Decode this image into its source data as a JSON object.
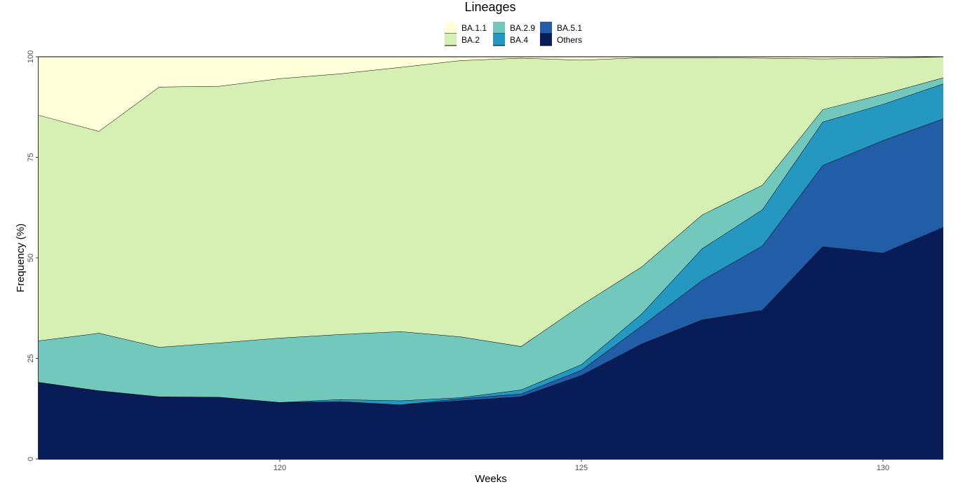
{
  "chart_data": {
    "type": "area",
    "stacked": true,
    "legend_title": "Lineages",
    "legend_position": "top",
    "xlabel": "Weeks",
    "ylabel": "Frequency (%)",
    "xlim": [
      116,
      131
    ],
    "ylim": [
      0,
      100
    ],
    "x_ticks": [
      120,
      125,
      130
    ],
    "y_ticks": [
      0,
      25,
      50,
      75,
      100
    ],
    "grid": false,
    "x": [
      116,
      117,
      118,
      119,
      120,
      121,
      122,
      123,
      124,
      125,
      126,
      127,
      128,
      129,
      130,
      131
    ],
    "series": [
      {
        "name": "Others",
        "color": "#081d58",
        "values": [
          19.1,
          17.0,
          15.5,
          15.4,
          14.1,
          14.3,
          13.5,
          14.5,
          15.5,
          20.8,
          28.6,
          34.6,
          37.0,
          52.8,
          51.2,
          57.6
        ]
      },
      {
        "name": "BA.5.1",
        "color": "#225ea8",
        "values": [
          0.0,
          0.0,
          0.0,
          0.0,
          0.0,
          0.0,
          0.0,
          0.5,
          0.7,
          1.3,
          4.5,
          9.8,
          16.0,
          20.2,
          28.0,
          27.0
        ]
      },
      {
        "name": "BA.4",
        "color": "#2498c1",
        "values": [
          0.0,
          0.0,
          0.0,
          0.0,
          0.0,
          0.5,
          1.0,
          0.3,
          1.0,
          1.4,
          3.0,
          7.9,
          9.0,
          10.8,
          9.0,
          8.7
        ]
      },
      {
        "name": "BA.2.9",
        "color": "#73c8bd",
        "values": [
          10.3,
          14.3,
          12.3,
          13.5,
          16.0,
          16.2,
          17.2,
          15.1,
          10.8,
          14.8,
          11.7,
          8.4,
          6.1,
          3.1,
          2.5,
          1.5
        ]
      },
      {
        "name": "BA.2",
        "color": "#d6efb3",
        "values": [
          56.1,
          50.2,
          64.7,
          63.8,
          64.5,
          64.8,
          65.7,
          68.7,
          71.7,
          60.9,
          52.0,
          39.1,
          31.6,
          12.6,
          9.0,
          5.2
        ]
      },
      {
        "name": "BA.1.1",
        "color": "#ffffd9",
        "values": [
          14.5,
          18.5,
          7.5,
          7.3,
          5.4,
          4.2,
          2.6,
          0.9,
          0.3,
          0.8,
          0.2,
          0.2,
          0.3,
          0.5,
          0.3,
          0.0
        ]
      }
    ],
    "legend_order": [
      "BA.1.1",
      "BA.2",
      "BA.2.9",
      "BA.4",
      "BA.5.1",
      "Others"
    ]
  }
}
